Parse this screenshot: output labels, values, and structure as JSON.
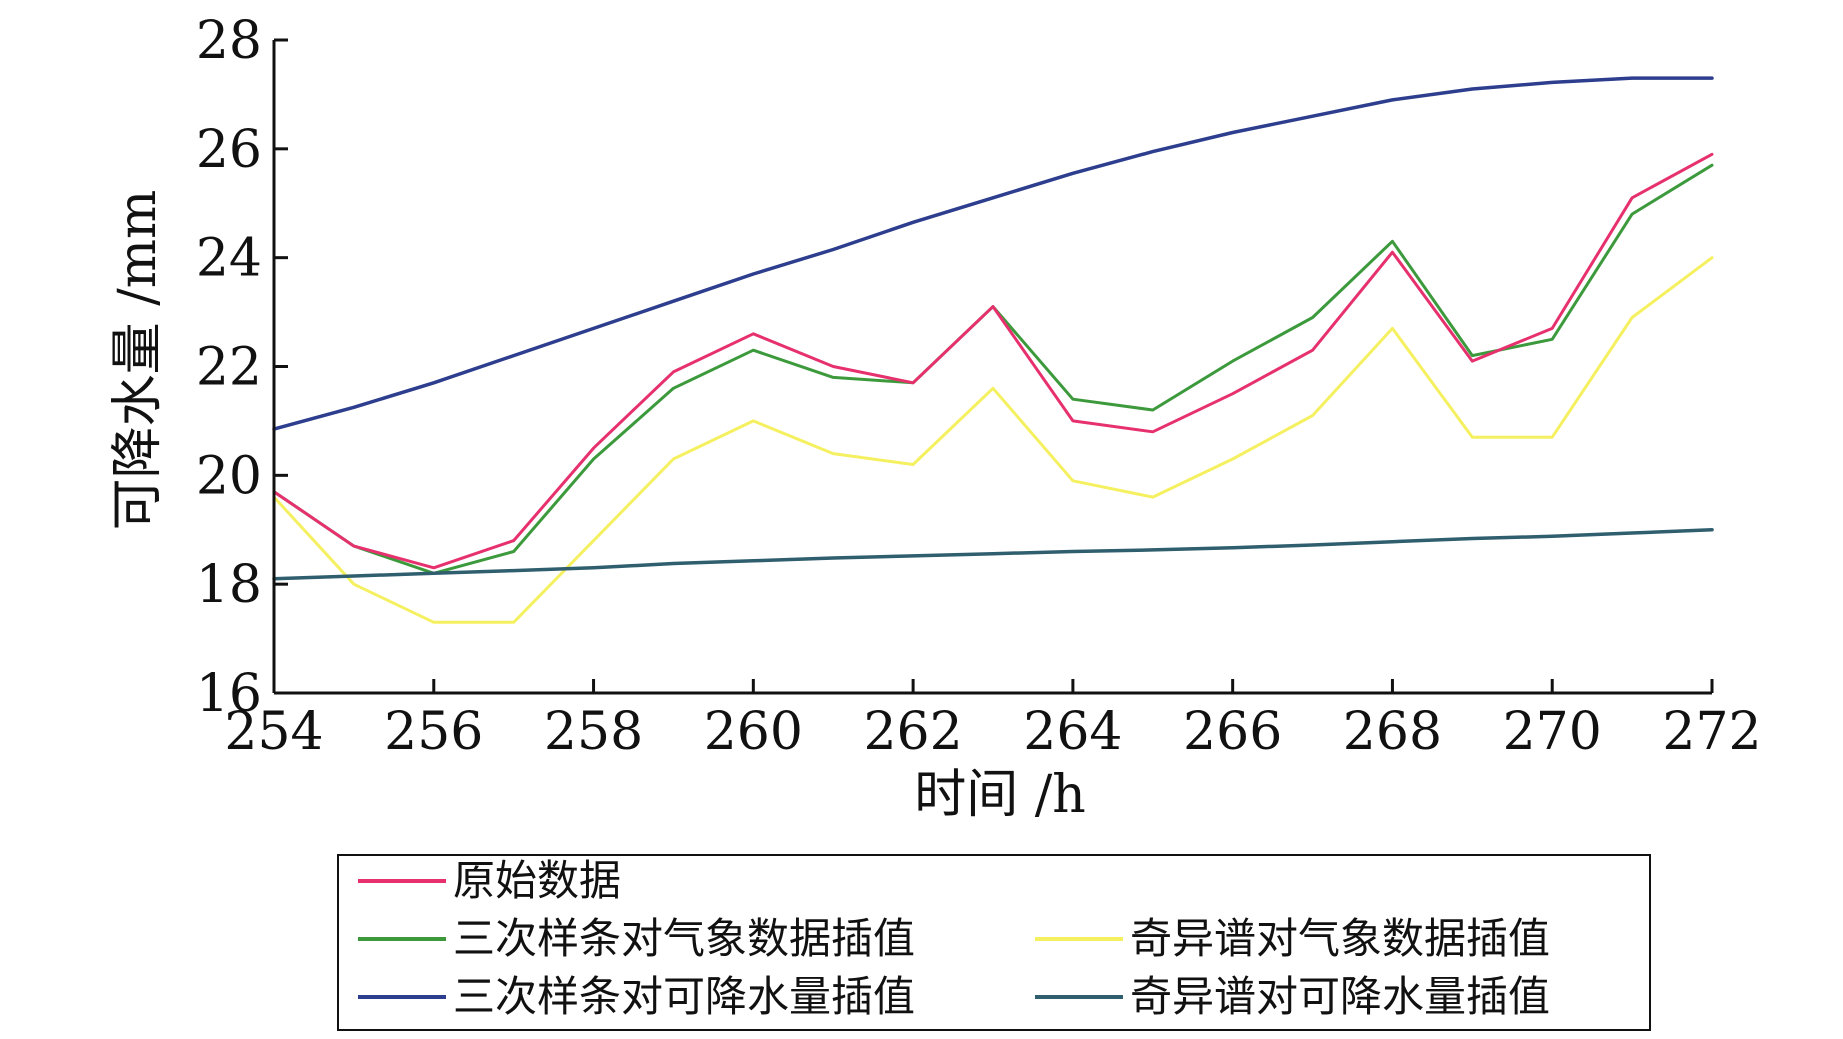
{
  "chart_data": {
    "type": "line",
    "title": "",
    "xlabel": "时间 /h",
    "ylabel": "可降水量 /mm",
    "xlim": [
      254,
      272
    ],
    "ylim": [
      16,
      28
    ],
    "xticks": [
      254,
      256,
      258,
      260,
      262,
      264,
      266,
      268,
      270,
      272
    ],
    "yticks": [
      16,
      18,
      20,
      22,
      24,
      26,
      28
    ],
    "grid": false,
    "legend": "bottom",
    "x": [
      254,
      255,
      256,
      257,
      258,
      259,
      260,
      261,
      262,
      263,
      264,
      265,
      266,
      267,
      268,
      269,
      270,
      271,
      272
    ],
    "series": [
      {
        "name": "原始数据",
        "color": "#e6316e",
        "values": [
          19.7,
          18.7,
          18.3,
          18.8,
          20.5,
          21.9,
          22.6,
          22.0,
          21.7,
          23.1,
          21.0,
          20.8,
          21.5,
          22.3,
          24.1,
          22.1,
          22.7,
          25.1,
          25.9
        ]
      },
      {
        "name": "三次样条对气象数据插值",
        "color": "#3c9a3c",
        "values": [
          19.7,
          18.7,
          18.2,
          18.6,
          20.3,
          21.6,
          22.3,
          21.8,
          21.7,
          23.1,
          21.4,
          21.2,
          22.1,
          22.9,
          24.3,
          22.2,
          22.5,
          24.8,
          25.7
        ]
      },
      {
        "name": "奇异谱对气象数据插值",
        "color": "#f5f060",
        "values": [
          19.6,
          18.0,
          17.3,
          17.3,
          18.8,
          20.3,
          21.0,
          20.4,
          20.2,
          21.6,
          19.9,
          19.6,
          20.3,
          21.1,
          22.7,
          20.7,
          20.7,
          22.9,
          24.0
        ]
      },
      {
        "name": "三次样条对可降水量插值",
        "color": "#2e3e8e",
        "values": [
          20.85,
          21.25,
          21.7,
          22.2,
          22.7,
          23.2,
          23.7,
          24.15,
          24.65,
          25.1,
          25.55,
          25.95,
          26.3,
          26.6,
          26.9,
          27.1,
          27.22,
          27.3,
          27.3
        ]
      },
      {
        "name": "奇异谱对可降水量插值",
        "color": "#2f5e6e",
        "values": [
          18.1,
          18.15,
          18.2,
          18.25,
          18.3,
          18.38,
          18.43,
          18.48,
          18.52,
          18.56,
          18.6,
          18.63,
          18.67,
          18.72,
          18.78,
          18.84,
          18.88,
          18.94,
          19.0
        ]
      }
    ]
  }
}
